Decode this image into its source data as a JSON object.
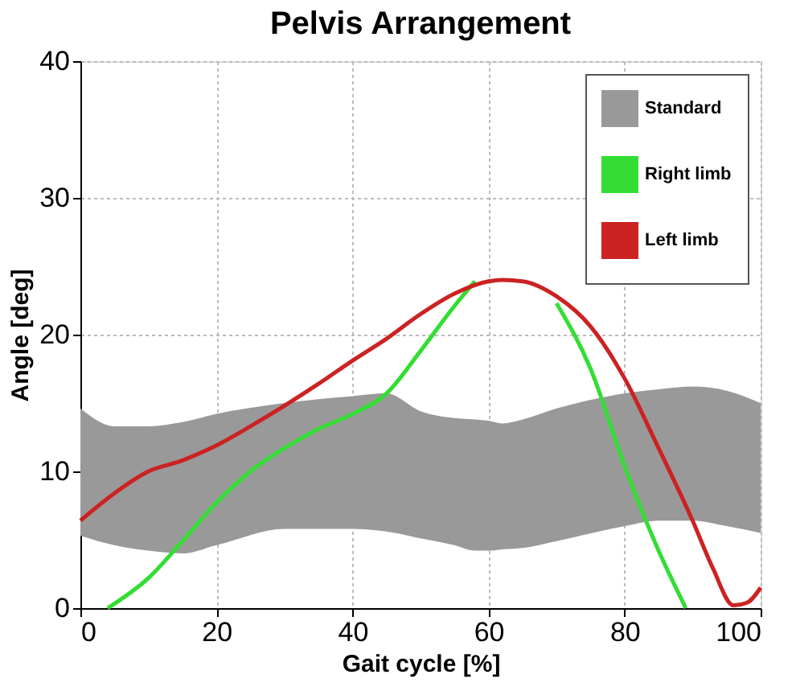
{
  "chart_data": {
    "type": "line",
    "title": "Pelvis Arrangement",
    "xlabel": "Gait cycle [%]",
    "ylabel": "Angle [deg]",
    "xlim": [
      0,
      100
    ],
    "ylim": [
      0,
      40
    ],
    "xticks": [
      0,
      20,
      40,
      60,
      80,
      100
    ],
    "yticks": [
      0,
      10,
      20,
      30,
      40
    ],
    "grid": true,
    "legend": "top right",
    "line_style": "solid",
    "marker": "none",
    "series": [
      {
        "name": "Standard",
        "type": "area",
        "color": "#999999",
        "x": [
          0,
          5,
          10,
          15,
          20,
          30,
          40,
          45,
          50,
          55,
          58,
          60,
          62,
          65,
          70,
          80,
          85,
          90,
          95,
          100
        ],
        "lower": [
          5.3,
          4.6,
          4.2,
          4.0,
          4.6,
          5.8,
          5.8,
          5.6,
          5.1,
          4.6,
          4.2,
          4.2,
          4.3,
          4.4,
          4.9,
          6.0,
          6.4,
          6.4,
          6.0,
          5.5
        ],
        "values": [
          null,
          null,
          null,
          null,
          null,
          null,
          null,
          null,
          null,
          null,
          null,
          null,
          null,
          null,
          null,
          null,
          null,
          null,
          null,
          null
        ],
        "upper": [
          14.6,
          13.3,
          13.3,
          13.6,
          14.2,
          15.0,
          15.5,
          15.7,
          14.4,
          13.9,
          13.8,
          13.7,
          13.5,
          13.8,
          14.6,
          15.7,
          16.0,
          16.2,
          15.9,
          15.0
        ]
      },
      {
        "name": "Right limb",
        "color": "#33dd33",
        "x": [
          4,
          10,
          15,
          20,
          25,
          30,
          35,
          40,
          45,
          50,
          55,
          58,
          62,
          66,
          70,
          75,
          80,
          85,
          89
        ],
        "values": [
          0,
          2.2,
          4.9,
          7.7,
          10.0,
          11.7,
          13.1,
          14.2,
          15.7,
          18.8,
          22.1,
          23.9,
          null,
          null,
          22.3,
          17.5,
          10.4,
          4.2,
          0
        ]
      },
      {
        "name": "Left limb",
        "color": "#cc2222",
        "x": [
          0,
          5,
          10,
          15,
          20,
          25,
          30,
          35,
          40,
          45,
          50,
          55,
          60,
          62,
          65,
          70,
          75,
          80,
          85,
          90,
          93,
          96,
          98,
          100
        ],
        "values": [
          6.4,
          8.4,
          10.0,
          10.8,
          11.9,
          13.3,
          14.8,
          16.4,
          18.1,
          19.7,
          21.5,
          23.0,
          23.9,
          24.0,
          23.9,
          22.8,
          20.6,
          16.8,
          11.7,
          6.4,
          2.9,
          0.2,
          0.4,
          1.5
        ]
      }
    ]
  }
}
